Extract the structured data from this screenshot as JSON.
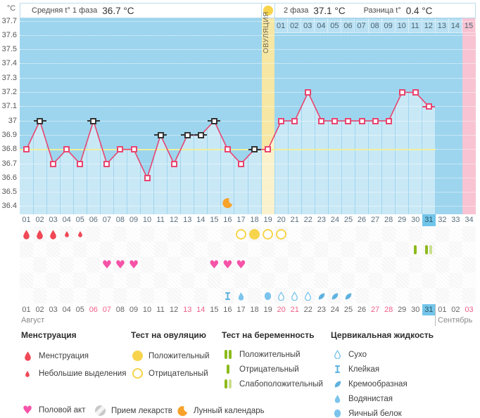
{
  "header": {
    "y_axis_unit": "°C",
    "phase1_label": "Средняя t° 1 фаза",
    "phase1_value": "36.7 °C",
    "phase2_label": "2 фаза",
    "phase2_value": "37.1 °C",
    "diff_label": "Разница t°",
    "diff_value": "0.4 °C",
    "ovulation_column_label": "ОВУЛЯЦИЯ"
  },
  "calendar": {
    "month1": "Август",
    "month2": "Сентябрь"
  },
  "colors": {
    "chart_bg": "#9dd5ee",
    "area_fill": "rgba(255,255,255,0.45)",
    "ovulation_column": "#f6e7a4",
    "period_column": "#f8c3d2",
    "temp_line": "#e8456f",
    "coverline": "#eff09c",
    "dash": "#333333",
    "menstruation": "#f04856",
    "heart": "#f653a8",
    "ovulation_test": "#f7d44c",
    "pregnancy_positive": "#8cba1c",
    "pregnancy_weak": "#cbdf8e",
    "cervical": "#5fb2e0",
    "cervical_light": "#7cc4ec",
    "moon": "#f7a22a",
    "weekend": "#f0608a",
    "today_bg": "#72c5ea"
  },
  "chart_data": {
    "type": "line",
    "y_unit": "°C",
    "y_max": 37.7,
    "y_min": 36.4,
    "y_ticks": [
      "37.7",
      "37.6",
      "37.5",
      "37.4",
      "37.3",
      "37.2",
      "37.1",
      "37",
      "36.9",
      "36.8",
      "36.7",
      "36.6",
      "36.5",
      "36.4"
    ],
    "coverline_temp": 36.8,
    "num_days": 34,
    "ovulation_day": 19,
    "today_day": 31,
    "cycle_days": [
      "01",
      "02",
      "03",
      "04",
      "05",
      "06",
      "07",
      "08",
      "09",
      "10",
      "11",
      "12",
      "13",
      "14",
      "15",
      "16",
      "17",
      "18",
      "19",
      "20",
      "21",
      "22",
      "23",
      "24",
      "25",
      "26",
      "27",
      "28",
      "29",
      "30",
      "31",
      "32",
      "33",
      "34"
    ],
    "phase2_day_labels": [
      "01",
      "02",
      "03",
      "04",
      "05",
      "06",
      "07",
      "08",
      "09",
      "10",
      "11",
      "12",
      "13",
      "14",
      "15"
    ],
    "temperatures": [
      {
        "day": 1,
        "temp": 36.8
      },
      {
        "day": 2,
        "temp": 37.0,
        "dash": "black"
      },
      {
        "day": 3,
        "temp": 36.7
      },
      {
        "day": 4,
        "temp": 36.8
      },
      {
        "day": 5,
        "temp": 36.7
      },
      {
        "day": 6,
        "temp": 37.0,
        "dash": "black"
      },
      {
        "day": 7,
        "temp": 36.7
      },
      {
        "day": 8,
        "temp": 36.8
      },
      {
        "day": 9,
        "temp": 36.8
      },
      {
        "day": 10,
        "temp": 36.6
      },
      {
        "day": 11,
        "temp": 36.9,
        "dash": "black"
      },
      {
        "day": 12,
        "temp": 36.7
      },
      {
        "day": 13,
        "temp": 36.9,
        "dash": "black"
      },
      {
        "day": 14,
        "temp": 36.9,
        "dash": "black"
      },
      {
        "day": 15,
        "temp": 37.0,
        "dash": "black"
      },
      {
        "day": 16,
        "temp": 36.8
      },
      {
        "day": 17,
        "temp": 36.7
      },
      {
        "day": 18,
        "temp": 36.8,
        "dash": "black"
      },
      {
        "day": 19,
        "temp": 36.8
      },
      {
        "day": 20,
        "temp": 37.0
      },
      {
        "day": 21,
        "temp": 37.0
      },
      {
        "day": 22,
        "temp": 37.2
      },
      {
        "day": 23,
        "temp": 37.0
      },
      {
        "day": 24,
        "temp": 37.0
      },
      {
        "day": 25,
        "temp": 37.0
      },
      {
        "day": 26,
        "temp": 37.0
      },
      {
        "day": 27,
        "temp": 37.0
      },
      {
        "day": 28,
        "temp": 37.0
      },
      {
        "day": 29,
        "temp": 37.2
      },
      {
        "day": 30,
        "temp": 37.2
      },
      {
        "day": 31,
        "temp": 37.1,
        "dash": "pink"
      }
    ],
    "events": {
      "menstruation": [
        {
          "day": 1,
          "size": "large"
        },
        {
          "day": 2,
          "size": "large"
        },
        {
          "day": 3,
          "size": "large"
        },
        {
          "day": 4,
          "size": "small"
        },
        {
          "day": 5,
          "size": "small"
        }
      ],
      "ovulation_tests": [
        {
          "day": 17,
          "result": "negative"
        },
        {
          "day": 18,
          "result": "positive"
        },
        {
          "day": 19,
          "result": "negative"
        },
        {
          "day": 20,
          "result": "negative"
        }
      ],
      "pregnancy_tests": [
        {
          "day": 30,
          "result": "negative"
        },
        {
          "day": 31,
          "result": "weak_positive"
        }
      ],
      "intercourse_days": [
        7,
        8,
        9,
        15,
        16,
        17
      ],
      "medication_days": [],
      "cervical_fluid": [
        {
          "day": 16,
          "type": "sticky"
        },
        {
          "day": 17,
          "type": "watery"
        },
        {
          "day": 19,
          "type": "eggwhite"
        },
        {
          "day": 20,
          "type": "dry"
        },
        {
          "day": 21,
          "type": "dry"
        },
        {
          "day": 22,
          "type": "dry"
        },
        {
          "day": 23,
          "type": "creamy"
        },
        {
          "day": 24,
          "type": "creamy"
        },
        {
          "day": 25,
          "type": "creamy"
        }
      ],
      "lunar_days": [
        16
      ]
    },
    "dates": [
      {
        "label": "01",
        "weekend": false
      },
      {
        "label": "02",
        "weekend": false
      },
      {
        "label": "03",
        "weekend": false
      },
      {
        "label": "04",
        "weekend": false
      },
      {
        "label": "05",
        "weekend": false
      },
      {
        "label": "06",
        "weekend": true
      },
      {
        "label": "07",
        "weekend": true
      },
      {
        "label": "08",
        "weekend": false
      },
      {
        "label": "09",
        "weekend": false
      },
      {
        "label": "10",
        "weekend": false
      },
      {
        "label": "11",
        "weekend": false
      },
      {
        "label": "12",
        "weekend": false
      },
      {
        "label": "13",
        "weekend": true
      },
      {
        "label": "14",
        "weekend": true
      },
      {
        "label": "15",
        "weekend": false
      },
      {
        "label": "16",
        "weekend": false
      },
      {
        "label": "17",
        "weekend": false
      },
      {
        "label": "18",
        "weekend": false
      },
      {
        "label": "19",
        "weekend": false
      },
      {
        "label": "20",
        "weekend": true
      },
      {
        "label": "21",
        "weekend": true
      },
      {
        "label": "22",
        "weekend": false
      },
      {
        "label": "23",
        "weekend": false
      },
      {
        "label": "24",
        "weekend": false
      },
      {
        "label": "25",
        "weekend": false
      },
      {
        "label": "26",
        "weekend": false
      },
      {
        "label": "27",
        "weekend": true
      },
      {
        "label": "28",
        "weekend": true
      },
      {
        "label": "29",
        "weekend": false
      },
      {
        "label": "30",
        "weekend": false
      },
      {
        "label": "31",
        "weekend": false
      },
      {
        "label": "01",
        "weekend": false
      },
      {
        "label": "02",
        "weekend": false
      },
      {
        "label": "03",
        "weekend": true
      }
    ]
  },
  "legend": {
    "sections": [
      {
        "title": "Менструация",
        "items": [
          {
            "icon": "drop-large",
            "label": "Менструация"
          },
          {
            "icon": "drop-small",
            "label": "Небольшие выделения"
          }
        ]
      },
      {
        "title": "Тест на овуляцию",
        "items": [
          {
            "icon": "ovtest-positive",
            "label": "Положительный"
          },
          {
            "icon": "ovtest-negative",
            "label": "Отрицательный"
          }
        ]
      },
      {
        "title": "Тест на беременность",
        "items": [
          {
            "icon": "pregtest-positive",
            "label": "Положительный"
          },
          {
            "icon": "pregtest-negative",
            "label": "Отрицательный"
          },
          {
            "icon": "pregtest-weak",
            "label": "Слабоположительный"
          }
        ]
      },
      {
        "title": "Цервикальная жидкость",
        "items": [
          {
            "icon": "cf-dry",
            "label": "Сухо"
          },
          {
            "icon": "cf-sticky",
            "label": "Клейкая"
          },
          {
            "icon": "cf-creamy",
            "label": "Кремообразная"
          },
          {
            "icon": "cf-watery",
            "label": "Водянистая"
          },
          {
            "icon": "cf-eggwhite",
            "label": "Яичный белок"
          }
        ]
      }
    ],
    "footer_items": [
      {
        "icon": "heart",
        "label": "Половой акт"
      },
      {
        "icon": "pill",
        "label": "Прием лекарств"
      },
      {
        "icon": "moon",
        "label": "Лунный календарь"
      }
    ]
  }
}
